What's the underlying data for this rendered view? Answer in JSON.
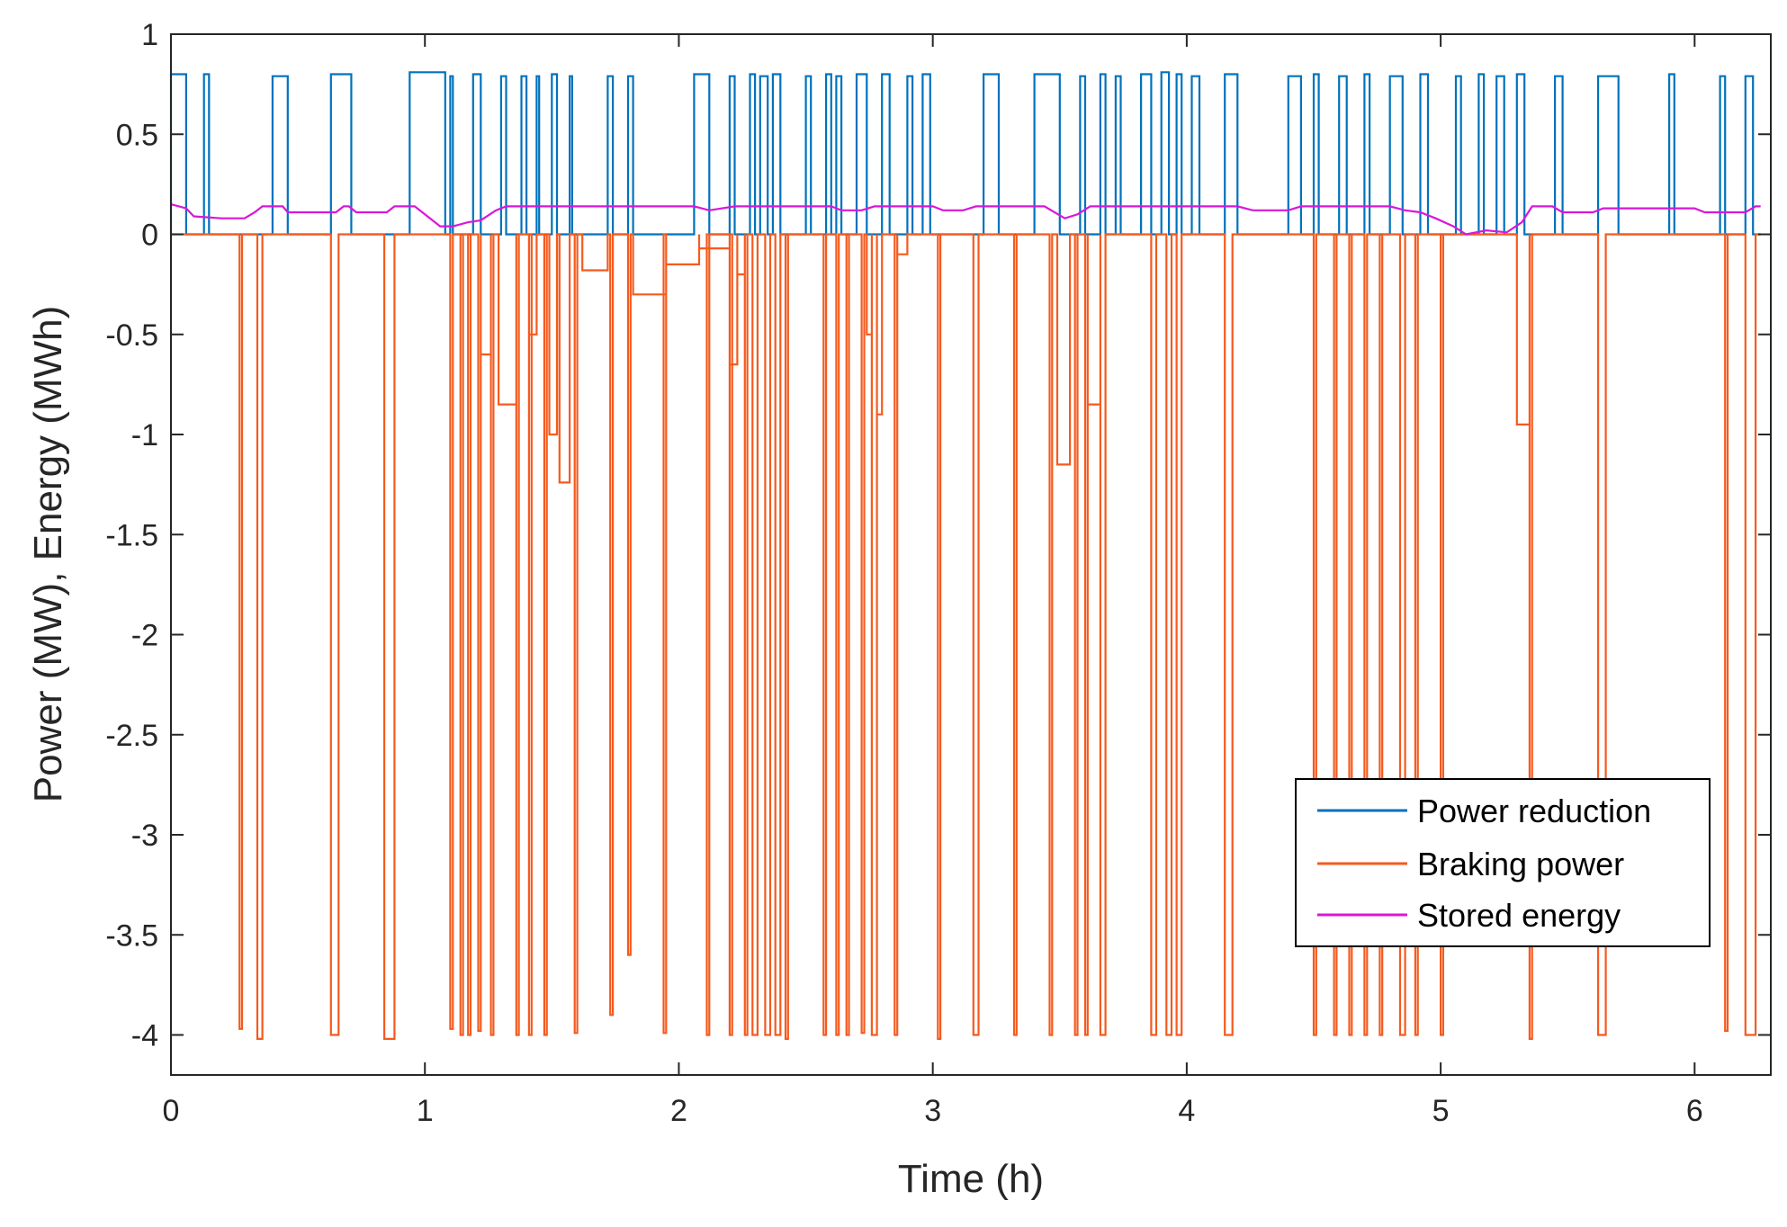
{
  "chart_data": {
    "type": "line",
    "title": "",
    "xlabel": "Time (h)",
    "ylabel": "Power (MW), Energy (MWh)",
    "xlim": [
      0,
      6.3
    ],
    "ylim": [
      -4.2,
      1
    ],
    "xticks": [
      0,
      1,
      2,
      3,
      4,
      5,
      6
    ],
    "xtick_labels": [
      "0",
      "1",
      "2",
      "3",
      "4",
      "5",
      "6"
    ],
    "yticks": [
      1,
      0.5,
      0,
      -0.5,
      -1,
      -1.5,
      -2,
      -2.5,
      -3,
      -3.5,
      -4
    ],
    "ytick_labels": [
      "1",
      "0.5",
      "0",
      "-0.5",
      "-1",
      "-1.5",
      "-2",
      "-2.5",
      "-3",
      "-3.5",
      "-4"
    ],
    "grid": false,
    "legend_position": "bottom-right",
    "series": [
      {
        "name": "Power reduction",
        "color": "#0072BD",
        "pulses": [
          [
            0.0,
            0.06,
            0.8
          ],
          [
            0.13,
            0.15,
            0.8
          ],
          [
            0.4,
            0.46,
            0.79
          ],
          [
            0.63,
            0.71,
            0.8
          ],
          [
            0.94,
            1.08,
            0.81
          ],
          [
            1.1,
            1.11,
            0.79
          ],
          [
            1.19,
            1.22,
            0.8
          ],
          [
            1.3,
            1.32,
            0.79
          ],
          [
            1.38,
            1.4,
            0.79
          ],
          [
            1.44,
            1.45,
            0.79
          ],
          [
            1.5,
            1.52,
            0.8
          ],
          [
            1.57,
            1.58,
            0.79
          ],
          [
            1.72,
            1.74,
            0.79
          ],
          [
            1.8,
            1.82,
            0.79
          ],
          [
            2.06,
            2.12,
            0.8
          ],
          [
            2.2,
            2.22,
            0.79
          ],
          [
            2.28,
            2.3,
            0.8
          ],
          [
            2.32,
            2.35,
            0.79
          ],
          [
            2.37,
            2.4,
            0.8
          ],
          [
            2.5,
            2.52,
            0.79
          ],
          [
            2.58,
            2.6,
            0.8
          ],
          [
            2.62,
            2.64,
            0.79
          ],
          [
            2.7,
            2.74,
            0.8
          ],
          [
            2.8,
            2.83,
            0.8
          ],
          [
            2.9,
            2.92,
            0.79
          ],
          [
            2.96,
            2.99,
            0.8
          ],
          [
            3.2,
            3.26,
            0.8
          ],
          [
            3.4,
            3.5,
            0.8
          ],
          [
            3.58,
            3.6,
            0.79
          ],
          [
            3.66,
            3.68,
            0.8
          ],
          [
            3.72,
            3.74,
            0.79
          ],
          [
            3.82,
            3.86,
            0.8
          ],
          [
            3.9,
            3.93,
            0.81
          ],
          [
            3.96,
            3.98,
            0.8
          ],
          [
            4.02,
            4.05,
            0.79
          ],
          [
            4.15,
            4.2,
            0.8
          ],
          [
            4.4,
            4.45,
            0.79
          ],
          [
            4.5,
            4.52,
            0.8
          ],
          [
            4.6,
            4.63,
            0.79
          ],
          [
            4.7,
            4.72,
            0.8
          ],
          [
            4.8,
            4.85,
            0.79
          ],
          [
            4.92,
            4.95,
            0.8
          ],
          [
            5.06,
            5.08,
            0.79
          ],
          [
            5.15,
            5.17,
            0.8
          ],
          [
            5.22,
            5.25,
            0.79
          ],
          [
            5.3,
            5.33,
            0.8
          ],
          [
            5.45,
            5.48,
            0.79
          ],
          [
            5.62,
            5.7,
            0.79
          ],
          [
            5.9,
            5.92,
            0.8
          ],
          [
            6.1,
            6.12,
            0.79
          ],
          [
            6.2,
            6.23,
            0.79
          ]
        ]
      },
      {
        "name": "Braking power",
        "color": "#F55A1E",
        "pulses": [
          [
            0.27,
            0.28,
            -3.97
          ],
          [
            0.34,
            0.36,
            -4.02
          ],
          [
            0.63,
            0.66,
            -4.0
          ],
          [
            0.84,
            0.88,
            -4.02
          ],
          [
            1.1,
            1.11,
            -3.97
          ],
          [
            1.14,
            1.15,
            -4.0
          ],
          [
            1.17,
            1.18,
            -4.0
          ],
          [
            1.21,
            1.22,
            -3.98
          ],
          [
            1.26,
            1.27,
            -4.0
          ],
          [
            1.36,
            1.37,
            -4.0
          ],
          [
            1.41,
            1.42,
            -4.0
          ],
          [
            1.47,
            1.48,
            -4.0
          ],
          [
            1.59,
            1.6,
            -3.99
          ],
          [
            1.73,
            1.74,
            -3.9
          ],
          [
            1.8,
            1.81,
            -3.6
          ],
          [
            1.94,
            1.95,
            -3.99
          ],
          [
            2.11,
            2.12,
            -4.0
          ],
          [
            2.2,
            2.21,
            -4.0
          ],
          [
            2.26,
            2.27,
            -4.0
          ],
          [
            2.29,
            2.31,
            -4.0
          ],
          [
            2.34,
            2.36,
            -4.0
          ],
          [
            2.38,
            2.4,
            -4.0
          ],
          [
            2.42,
            2.43,
            -4.02
          ],
          [
            2.57,
            2.58,
            -4.0
          ],
          [
            2.62,
            2.63,
            -4.0
          ],
          [
            2.66,
            2.67,
            -4.0
          ],
          [
            2.72,
            2.73,
            -3.99
          ],
          [
            2.76,
            2.78,
            -4.0
          ],
          [
            2.85,
            2.86,
            -4.0
          ],
          [
            3.02,
            3.03,
            -4.02
          ],
          [
            3.16,
            3.18,
            -4.0
          ],
          [
            3.32,
            3.33,
            -4.0
          ],
          [
            3.46,
            3.47,
            -4.0
          ],
          [
            3.56,
            3.57,
            -4.0
          ],
          [
            3.6,
            3.61,
            -4.0
          ],
          [
            3.66,
            3.68,
            -4.0
          ],
          [
            3.86,
            3.88,
            -4.0
          ],
          [
            3.92,
            3.94,
            -4.0
          ],
          [
            3.96,
            3.98,
            -4.0
          ],
          [
            4.15,
            4.18,
            -4.0
          ],
          [
            4.5,
            4.51,
            -4.0
          ],
          [
            4.58,
            4.59,
            -4.0
          ],
          [
            4.64,
            4.65,
            -4.0
          ],
          [
            4.7,
            4.71,
            -4.0
          ],
          [
            4.76,
            4.77,
            -4.0
          ],
          [
            4.84,
            4.86,
            -4.0
          ],
          [
            4.9,
            4.91,
            -4.0
          ],
          [
            5.0,
            5.01,
            -4.0
          ],
          [
            5.35,
            5.36,
            -4.02
          ],
          [
            5.62,
            5.65,
            -4.0
          ],
          [
            6.12,
            6.13,
            -3.98
          ],
          [
            6.2,
            6.24,
            -4.0
          ]
        ],
        "steps": [
          [
            1.22,
            1.26,
            -0.6
          ],
          [
            1.29,
            1.36,
            -0.85
          ],
          [
            1.41,
            1.44,
            -0.5
          ],
          [
            1.49,
            1.52,
            -1.0
          ],
          [
            1.53,
            1.57,
            -1.24
          ],
          [
            1.62,
            1.72,
            -0.18
          ],
          [
            1.82,
            1.95,
            -0.3
          ],
          [
            1.95,
            2.08,
            -0.15
          ],
          [
            2.08,
            2.2,
            -0.07
          ],
          [
            2.2,
            2.23,
            -0.65
          ],
          [
            2.23,
            2.26,
            -0.2
          ],
          [
            2.74,
            2.76,
            -0.5
          ],
          [
            2.78,
            2.8,
            -0.9
          ],
          [
            2.86,
            2.9,
            -0.1
          ],
          [
            3.49,
            3.54,
            -1.15
          ],
          [
            3.61,
            3.66,
            -0.85
          ],
          [
            5.3,
            5.35,
            -0.95
          ]
        ]
      },
      {
        "name": "Stored energy",
        "color": "#D818D8",
        "points": [
          [
            0.0,
            0.15
          ],
          [
            0.06,
            0.13
          ],
          [
            0.09,
            0.09
          ],
          [
            0.2,
            0.08
          ],
          [
            0.29,
            0.08
          ],
          [
            0.33,
            0.11
          ],
          [
            0.36,
            0.14
          ],
          [
            0.44,
            0.14
          ],
          [
            0.46,
            0.11
          ],
          [
            0.65,
            0.11
          ],
          [
            0.68,
            0.14
          ],
          [
            0.7,
            0.14
          ],
          [
            0.73,
            0.11
          ],
          [
            0.85,
            0.11
          ],
          [
            0.88,
            0.14
          ],
          [
            0.96,
            0.14
          ],
          [
            1.06,
            0.04
          ],
          [
            1.11,
            0.04
          ],
          [
            1.17,
            0.06
          ],
          [
            1.22,
            0.07
          ],
          [
            1.28,
            0.12
          ],
          [
            1.32,
            0.14
          ],
          [
            2.06,
            0.14
          ],
          [
            2.12,
            0.12
          ],
          [
            2.22,
            0.14
          ],
          [
            2.6,
            0.14
          ],
          [
            2.64,
            0.12
          ],
          [
            2.72,
            0.12
          ],
          [
            2.77,
            0.14
          ],
          [
            3.0,
            0.14
          ],
          [
            3.04,
            0.12
          ],
          [
            3.12,
            0.12
          ],
          [
            3.17,
            0.14
          ],
          [
            3.44,
            0.14
          ],
          [
            3.52,
            0.08
          ],
          [
            3.57,
            0.1
          ],
          [
            3.62,
            0.14
          ],
          [
            4.2,
            0.14
          ],
          [
            4.26,
            0.12
          ],
          [
            4.4,
            0.12
          ],
          [
            4.45,
            0.14
          ],
          [
            4.8,
            0.14
          ],
          [
            4.86,
            0.12
          ],
          [
            4.92,
            0.11
          ],
          [
            4.98,
            0.08
          ],
          [
            5.05,
            0.04
          ],
          [
            5.1,
            0.0
          ],
          [
            5.18,
            0.02
          ],
          [
            5.26,
            0.01
          ],
          [
            5.32,
            0.06
          ],
          [
            5.36,
            0.14
          ],
          [
            5.44,
            0.14
          ],
          [
            5.48,
            0.11
          ],
          [
            5.6,
            0.11
          ],
          [
            5.64,
            0.13
          ],
          [
            6.0,
            0.13
          ],
          [
            6.04,
            0.11
          ],
          [
            6.2,
            0.11
          ],
          [
            6.24,
            0.14
          ],
          [
            6.26,
            0.14
          ]
        ]
      }
    ]
  }
}
